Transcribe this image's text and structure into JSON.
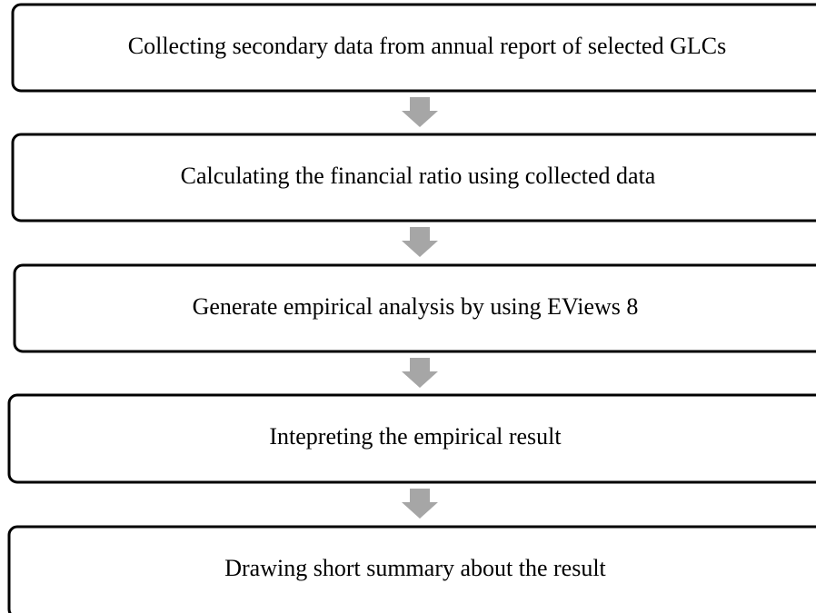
{
  "nodes": [
    {
      "label": "Collecting secondary data from annual report of selected GLCs"
    },
    {
      "label": "Calculating the financial ratio using collected data"
    },
    {
      "label": "Generate empirical analysis by using EViews 8"
    },
    {
      "label": "Intepreting the empirical result"
    },
    {
      "label": "Drawing short summary about the result"
    }
  ]
}
